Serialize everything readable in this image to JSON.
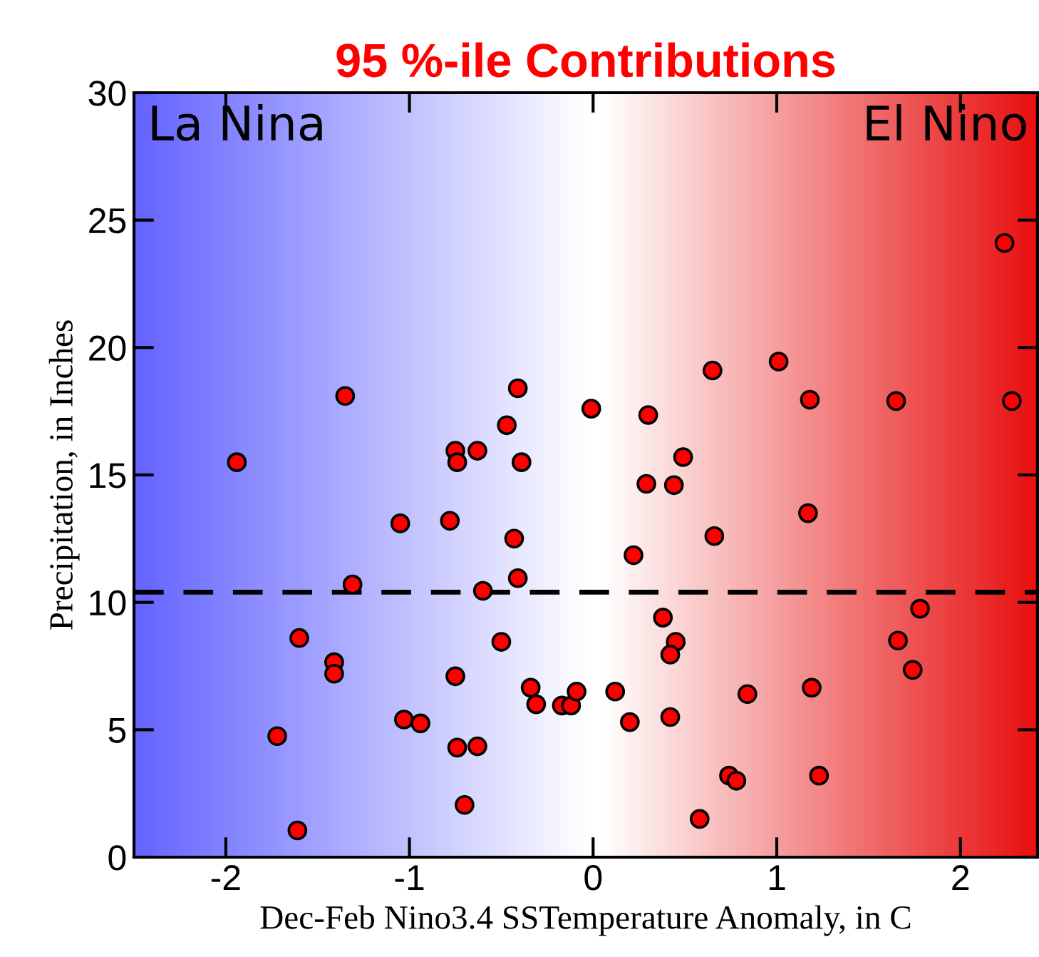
{
  "chart_data": {
    "type": "scatter",
    "title": "95 %-ile Contributions",
    "xlabel": "Dec-Feb Nino3.4 SSTemperature Anomaly, in C",
    "ylabel": "Precipitation, in Inches",
    "annotations": [
      "La Nina",
      "El Nino"
    ],
    "x": [
      -1.94,
      -1.35,
      -1.31,
      -1.6,
      -1.41,
      -1.41,
      -1.72,
      -1.61,
      -1.05,
      -1.03,
      -0.94,
      -0.75,
      -0.74,
      -0.63,
      -0.78,
      -0.75,
      -0.74,
      -0.63,
      -0.7,
      -0.6,
      -0.41,
      -0.47,
      -0.39,
      -0.43,
      -0.41,
      -0.5,
      -0.34,
      -0.31,
      -0.17,
      -0.12,
      -0.09,
      -0.01,
      0.3,
      0.49,
      0.29,
      0.44,
      0.22,
      0.66,
      0.65,
      1.01,
      1.18,
      1.65,
      2.28,
      2.24,
      1.17,
      0.38,
      0.45,
      0.42,
      1.78,
      1.66,
      1.74,
      0.12,
      0.2,
      0.42,
      0.84,
      1.19,
      0.74,
      0.78,
      1.23,
      0.58
    ],
    "values": [
      15.5,
      18.1,
      10.7,
      8.6,
      7.65,
      7.2,
      4.75,
      1.05,
      13.1,
      5.4,
      5.25,
      15.95,
      15.5,
      15.95,
      13.2,
      7.1,
      4.3,
      4.35,
      2.05,
      10.45,
      18.4,
      16.95,
      15.5,
      12.5,
      10.95,
      8.45,
      6.65,
      6.0,
      5.95,
      5.95,
      6.5,
      17.6,
      17.35,
      15.7,
      14.65,
      14.6,
      11.85,
      12.6,
      19.1,
      19.45,
      17.95,
      17.9,
      17.9,
      24.1,
      13.5,
      9.4,
      8.45,
      7.95,
      9.75,
      8.5,
      7.35,
      6.5,
      5.3,
      5.5,
      6.4,
      6.65,
      3.2,
      3.0,
      3.2,
      1.5
    ],
    "color": "#ff0000",
    "marker": "circle",
    "xlim": [
      -2.5,
      2.42
    ],
    "xticks": [
      -2,
      -1,
      0,
      1,
      2
    ],
    "ylim": [
      0,
      30
    ],
    "yticks": [
      0,
      5,
      10,
      15,
      20,
      25,
      30
    ],
    "ref_lines": [
      {
        "axis": "y",
        "value": 10.4,
        "label": null,
        "color": "#000000",
        "line_style": "dashed"
      }
    ],
    "grid": false
  }
}
